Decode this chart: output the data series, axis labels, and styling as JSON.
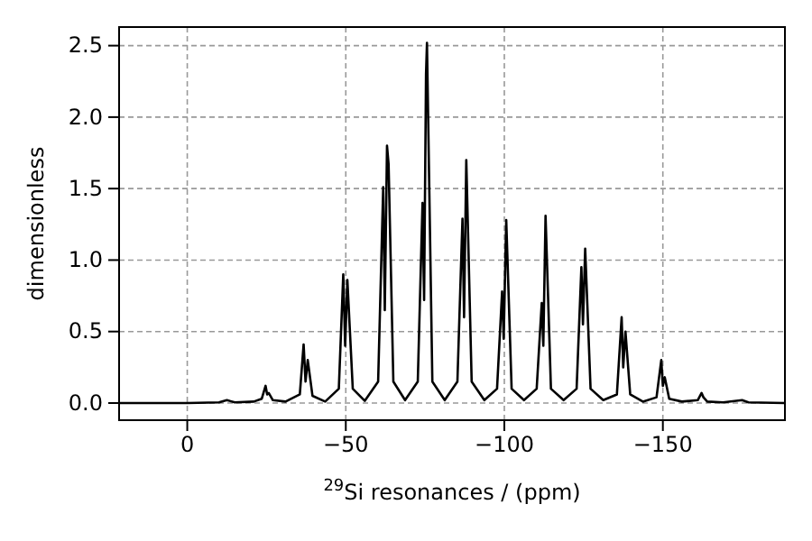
{
  "chart_data": {
    "type": "line",
    "xlabel": "$^{29}$Si resonances / (ppm)",
    "ylabel": "dimensionless",
    "xlim": [
      21.5,
      -188.5
    ],
    "ylim": [
      -0.12,
      2.63
    ],
    "xticks": [
      0,
      {
        "value": -50,
        "label": "−50"
      },
      {
        "value": -100,
        "label": "−100"
      },
      {
        "value": -150,
        "label": "−150"
      }
    ],
    "yticks": [
      {
        "value": 0,
        "label": "0.0"
      },
      {
        "value": 0.5,
        "label": "0.5"
      },
      {
        "value": 1,
        "label": "1.0"
      },
      {
        "value": 1.5,
        "label": "1.5"
      },
      {
        "value": 2,
        "label": "2.0"
      },
      {
        "value": 2.5,
        "label": "2.5"
      }
    ],
    "grid": true,
    "marker": "none",
    "line_style": "solid",
    "series": [
      {
        "color": "#000000",
        "x": [
          21.5,
          0,
          -10,
          -12.5,
          -15,
          -21,
          -23.5,
          -24.7,
          -25.2,
          -25.7,
          -27,
          -31,
          -35.5,
          -36.7,
          -37.3,
          -38,
          -39.5,
          -43.5,
          -47.8,
          -49.2,
          -49.8,
          -50.5,
          -52.2,
          -56,
          -60.2,
          -61.8,
          -62.3,
          -63,
          -63.5,
          -65,
          -68.7,
          -72.7,
          -74.2,
          -74.7,
          -75.3,
          -75.6,
          -77.3,
          -81.2,
          -85.2,
          -86.8,
          -87.3,
          -88,
          -89.7,
          -93.7,
          -97.7,
          -99.3,
          -99.8,
          -100.6,
          -102.3,
          -106.2,
          -110.2,
          -111.8,
          -112.3,
          -113,
          -114.7,
          -118.7,
          -122.8,
          -124.3,
          -124.8,
          -125.5,
          -127.2,
          -131.2,
          -135.5,
          -137,
          -137.5,
          -138.2,
          -139.7,
          -143.7,
          -148,
          -149.5,
          -150,
          -150.6,
          -152,
          -156,
          -161,
          -162.2,
          -162.8,
          -164,
          -169,
          -175,
          -177,
          -188.5
        ],
        "values": [
          0,
          0,
          0.005,
          0.02,
          0.005,
          0.01,
          0.03,
          0.12,
          0.06,
          0.07,
          0.02,
          0.01,
          0.06,
          0.41,
          0.15,
          0.3,
          0.05,
          0.01,
          0.1,
          0.9,
          0.4,
          0.86,
          0.1,
          0.015,
          0.15,
          1.51,
          0.65,
          1.8,
          1.67,
          0.15,
          0.02,
          0.15,
          1.4,
          0.72,
          2.3,
          2.52,
          0.15,
          0.02,
          0.15,
          1.29,
          0.6,
          1.7,
          0.15,
          0.02,
          0.1,
          0.78,
          0.45,
          1.28,
          0.1,
          0.02,
          0.1,
          0.7,
          0.4,
          1.31,
          0.1,
          0.02,
          0.1,
          0.95,
          0.55,
          1.08,
          0.1,
          0.02,
          0.06,
          0.6,
          0.25,
          0.5,
          0.06,
          0.01,
          0.04,
          0.3,
          0.12,
          0.18,
          0.03,
          0.01,
          0.02,
          0.07,
          0.04,
          0.01,
          0.005,
          0.02,
          0.005,
          0
        ]
      }
    ]
  }
}
